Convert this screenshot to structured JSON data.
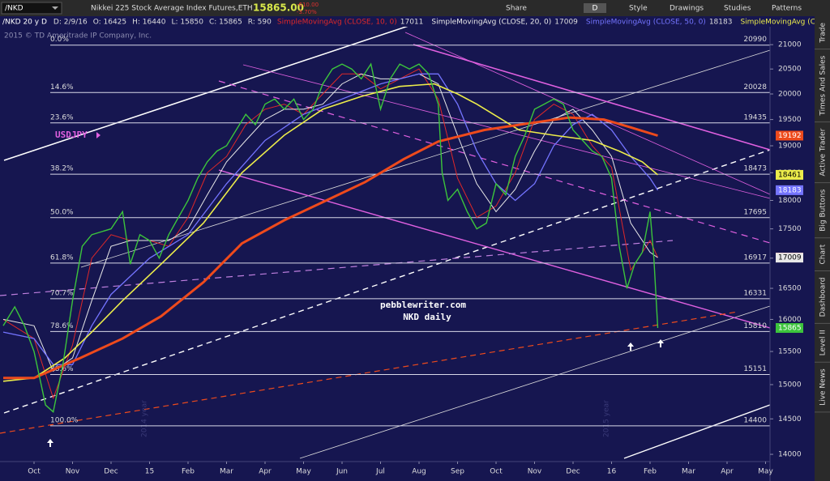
{
  "toolbar": {
    "symbol": "/NKD",
    "description": "Nikkei 225 Stock Average Index Futures,ETH",
    "last": "15865.00",
    "change": "-610.00",
    "change_pct": "-3.70%",
    "buttons": [
      "Share",
      "D",
      "Style",
      "Drawings",
      "Studies",
      "Patterns"
    ]
  },
  "info_bar": {
    "symbol": "/NKD 20 y D",
    "fields": [
      "D: 2/9/16",
      "O: 16425",
      "H: 16440",
      "L: 15850",
      "C: 15865",
      "R: 590"
    ]
  },
  "sidebar": [
    "Trade",
    "Times And Sales",
    "Active Trader",
    "Big Buttons",
    "Chart",
    "Dashboard",
    "Level II",
    "Live News"
  ],
  "chart_data": {
    "type": "line",
    "log_scale": true,
    "grid": false,
    "watermark": "2015 © TD Ameritrade IP Company, Inc.",
    "annotations": [
      "USDJPY",
      "pebblewriter.com",
      "NKD daily",
      "2014 year",
      "2015 year"
    ],
    "xlim": [
      -0.884,
      19.116
    ],
    "xticks": [
      {
        "value": 0,
        "label": "Oct"
      },
      {
        "value": 1,
        "label": "Nov"
      },
      {
        "value": 2,
        "label": "Dec"
      },
      {
        "value": 3,
        "label": "15"
      },
      {
        "value": 4,
        "label": "Feb"
      },
      {
        "value": 5,
        "label": "Mar"
      },
      {
        "value": 6,
        "label": "Apr"
      },
      {
        "value": 7,
        "label": "May"
      },
      {
        "value": 8,
        "label": "Jun"
      },
      {
        "value": 9,
        "label": "Jul"
      },
      {
        "value": 10,
        "label": "Aug"
      },
      {
        "value": 11,
        "label": "Sep"
      },
      {
        "value": 12,
        "label": "Oct"
      },
      {
        "value": 13,
        "label": "Nov"
      },
      {
        "value": 14,
        "label": "Dec"
      },
      {
        "value": 15,
        "label": "16"
      },
      {
        "value": 16,
        "label": "Feb"
      },
      {
        "value": 17,
        "label": "Mar"
      },
      {
        "value": 18,
        "label": "Apr"
      },
      {
        "value": 19,
        "label": "May"
      }
    ],
    "ylim": [
      13900,
      21600
    ],
    "yticks": [
      14000,
      14500,
      15000,
      15500,
      16000,
      16500,
      17000,
      17500,
      18000,
      18500,
      19000,
      19500,
      20000,
      20500,
      21000
    ],
    "fib_levels": [
      {
        "label": "0.0%",
        "value": 20990
      },
      {
        "label": "14.6%",
        "value": 20028
      },
      {
        "label": "23.6%",
        "value": 19435
      },
      {
        "label": "38.2%",
        "value": 18473
      },
      {
        "label": "50.0%",
        "value": 17695
      },
      {
        "label": "61.8%",
        "value": 16917
      },
      {
        "label": "70.7%",
        "value": 16331
      },
      {
        "label": "78.6%",
        "value": 15810
      },
      {
        "label": "88.6%",
        "value": 15151
      },
      {
        "label": "100.0%",
        "value": 14400
      }
    ],
    "series": [
      {
        "color": "#3cc43c",
        "width": 1.4,
        "x": [
          -0.8,
          -0.5,
          -0.25,
          0,
          0.3,
          0.5,
          0.75,
          1,
          1.25,
          1.5,
          2,
          2.3,
          2.5,
          2.75,
          3,
          3.25,
          3.5,
          3.75,
          4,
          4.25,
          4.5,
          4.75,
          5,
          5.25,
          5.5,
          5.75,
          6,
          6.25,
          6.5,
          6.75,
          7,
          7.25,
          7.5,
          7.75,
          8,
          8.25,
          8.5,
          8.75,
          9,
          9.25,
          9.5,
          9.75,
          10,
          10.25,
          10.5,
          10.6,
          10.75,
          11,
          11.25,
          11.5,
          11.75,
          12,
          12.25,
          12.5,
          12.75,
          13,
          13.25,
          13.5,
          13.75,
          14,
          14.25,
          14.5,
          14.75,
          15,
          15.2,
          15.4,
          15.6,
          15.8,
          16,
          16.1,
          16.2
        ],
        "values": [
          15900,
          16200,
          15900,
          15500,
          14700,
          14600,
          15300,
          16300,
          17200,
          17400,
          17500,
          17800,
          16900,
          17400,
          17300,
          17000,
          17400,
          17700,
          18000,
          18400,
          18700,
          18900,
          19000,
          19300,
          19600,
          19400,
          19800,
          19900,
          19700,
          19900,
          19500,
          19700,
          20200,
          20500,
          20600,
          20500,
          20300,
          20600,
          19700,
          20300,
          20600,
          20500,
          20600,
          20400,
          19800,
          18500,
          18000,
          18200,
          17800,
          17500,
          17600,
          18300,
          18100,
          18800,
          19200,
          19700,
          19800,
          19900,
          19800,
          19300,
          19100,
          18900,
          18800,
          18400,
          17200,
          16500,
          16900,
          17100,
          17800,
          17000,
          15865
        ]
      },
      {
        "name": "SimpleMovingAvg (CLOSE, 10, 0)",
        "color": "#e02828",
        "width": 1,
        "x": [
          -0.8,
          0,
          0.5,
          1,
          1.5,
          2,
          2.5,
          3,
          3.5,
          4,
          4.5,
          5,
          5.5,
          6,
          6.5,
          7,
          7.5,
          8,
          8.5,
          9,
          9.5,
          10,
          10.5,
          11,
          11.5,
          12,
          12.5,
          13,
          13.5,
          14,
          14.5,
          15,
          15.5,
          16,
          16.2
        ],
        "values": [
          16000,
          15700,
          14800,
          15600,
          17000,
          17400,
          17300,
          17300,
          17200,
          17700,
          18500,
          18800,
          19400,
          19700,
          19800,
          19600,
          20000,
          20400,
          20400,
          20100,
          20300,
          20500,
          19900,
          18400,
          17700,
          17900,
          18500,
          19500,
          19800,
          19600,
          19000,
          18600,
          16800,
          17300,
          17011
        ]
      },
      {
        "name": "SimpleMovingAvg (CLOSE, 20, 0)",
        "color": "#e8e8e8",
        "width": 1,
        "x": [
          -0.8,
          0,
          0.5,
          1,
          1.5,
          2,
          2.5,
          3,
          3.5,
          4,
          4.5,
          5,
          5.5,
          6,
          6.5,
          7,
          7.5,
          8,
          8.5,
          9,
          9.5,
          10,
          10.5,
          11,
          11.5,
          12,
          12.5,
          13,
          13.5,
          14,
          14.5,
          15,
          15.5,
          16,
          16.2
        ],
        "values": [
          16000,
          15900,
          15200,
          15400,
          16300,
          17200,
          17300,
          17300,
          17300,
          17500,
          18100,
          18700,
          19100,
          19500,
          19700,
          19700,
          19800,
          20200,
          20400,
          20300,
          20300,
          20400,
          20200,
          19200,
          18300,
          17800,
          18200,
          18900,
          19500,
          19700,
          19300,
          18800,
          17600,
          17100,
          17009
        ]
      },
      {
        "name": "SimpleMovingAvg (CLOSE, 50, 0)",
        "color": "#7474ff",
        "width": 1.3,
        "x": [
          -0.8,
          0,
          0.5,
          1,
          1.5,
          2,
          3,
          4,
          5,
          6,
          7,
          8,
          9,
          10,
          10.5,
          11,
          11.5,
          12,
          12.5,
          13,
          13.5,
          14,
          14.5,
          15,
          15.5,
          16,
          16.2
        ],
        "values": [
          15800,
          15700,
          15300,
          15300,
          15900,
          16400,
          17000,
          17400,
          18300,
          19100,
          19600,
          19900,
          20200,
          20400,
          20400,
          19800,
          18900,
          18300,
          18000,
          18300,
          19000,
          19400,
          19600,
          19300,
          18800,
          18400,
          18183
        ]
      },
      {
        "name": "SimpleMovingAvg (CLOSE, 100, 0)",
        "color": "#ecec4a",
        "width": 1.6,
        "x": [
          -0.8,
          0,
          0.8,
          1.5,
          2.3,
          3.3,
          4.4,
          5.4,
          6.5,
          7.5,
          8.5,
          9.5,
          10.4,
          11,
          11.5,
          12.6,
          13.5,
          14.5,
          15.2,
          15.8,
          16.2
        ],
        "values": [
          15050,
          15100,
          15400,
          15800,
          16300,
          16900,
          17600,
          18500,
          19200,
          19700,
          19950,
          20150,
          20200,
          20000,
          19800,
          19300,
          19200,
          19100,
          18900,
          18700,
          18461
        ]
      },
      {
        "color": "#ee4a1c",
        "width": 3,
        "x": [
          -0.8,
          0,
          1.2,
          2.3,
          3.3,
          4.4,
          5.4,
          6.5,
          7.5,
          8.6,
          9.6,
          10.5,
          11.7,
          12.8,
          13.9,
          14.8,
          15.5,
          16.2
        ],
        "values": [
          15100,
          15100,
          15400,
          15700,
          16050,
          16600,
          17250,
          17650,
          17970,
          18330,
          18750,
          19080,
          19300,
          19420,
          19540,
          19500,
          19350,
          19192
        ]
      }
    ]
  }
}
